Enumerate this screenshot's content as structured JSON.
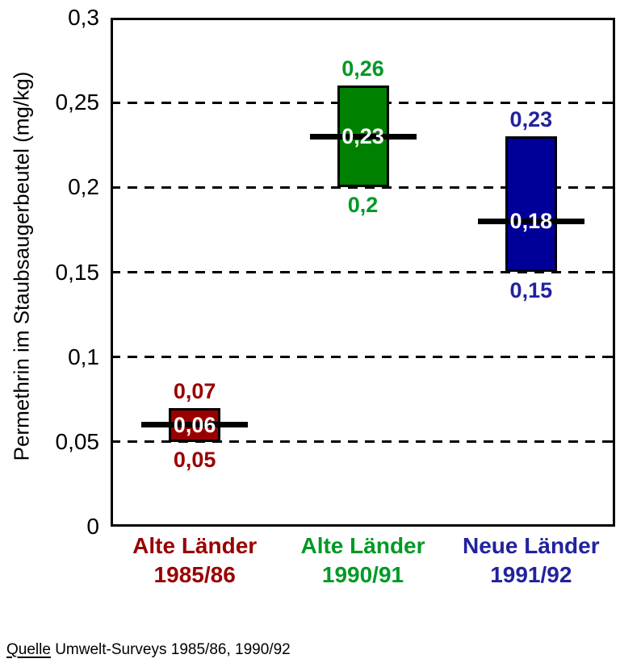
{
  "chart": {
    "y_axis_title": "Permethrin im Staubsaugerbeutel (mg/kg)"
  },
  "chart_data": {
    "type": "bar",
    "subtype": "floating-range-bars-with-median-line",
    "title": "",
    "xlabel": "",
    "ylabel": "Permethrin im Staubsaugerbeutel (mg/kg)",
    "ylim": [
      0,
      0.3
    ],
    "ytick_values": [
      0,
      0.05,
      0.1,
      0.15,
      0.2,
      0.25,
      0.3
    ],
    "ytick_labels": [
      "0",
      "0,05",
      "0,1",
      "0,15",
      "0,2",
      "0,25",
      "0,3"
    ],
    "grid": "horizontal dashed black lines at interior 0.05 steps",
    "legend": "none",
    "categories": [
      "Alte Länder 1985/86",
      "Alte Länder 1990/91",
      "Neue Länder 1991/92"
    ],
    "groups": [
      {
        "category_line1": "Alte Länder",
        "category_line2": "1985/86",
        "min": 0.05,
        "median": 0.06,
        "max": 0.07,
        "min_label": "0,05",
        "median_label": "0,06",
        "max_label": "0,07",
        "bar_fill": "#990000",
        "label_color": "#990000",
        "median_label_color": "#ffffff"
      },
      {
        "category_line1": "Alte Länder",
        "category_line2": "1990/91",
        "min": 0.2,
        "median": 0.23,
        "max": 0.26,
        "min_label": "0,2",
        "median_label": "0,23",
        "max_label": "0,26",
        "bar_fill": "#008000",
        "label_color": "#009926",
        "median_label_color": "#ffffff"
      },
      {
        "category_line1": "Neue Länder",
        "category_line2": "1991/92",
        "min": 0.15,
        "median": 0.18,
        "max": 0.23,
        "min_label": "0,15",
        "median_label": "0,18",
        "max_label": "0,23",
        "bar_fill": "#000099",
        "label_color": "#22229E",
        "median_label_color": "#ffffff"
      }
    ]
  },
  "source": {
    "label": "Quelle",
    "text": "Umwelt-Surveys 1985/86, 1990/92"
  }
}
